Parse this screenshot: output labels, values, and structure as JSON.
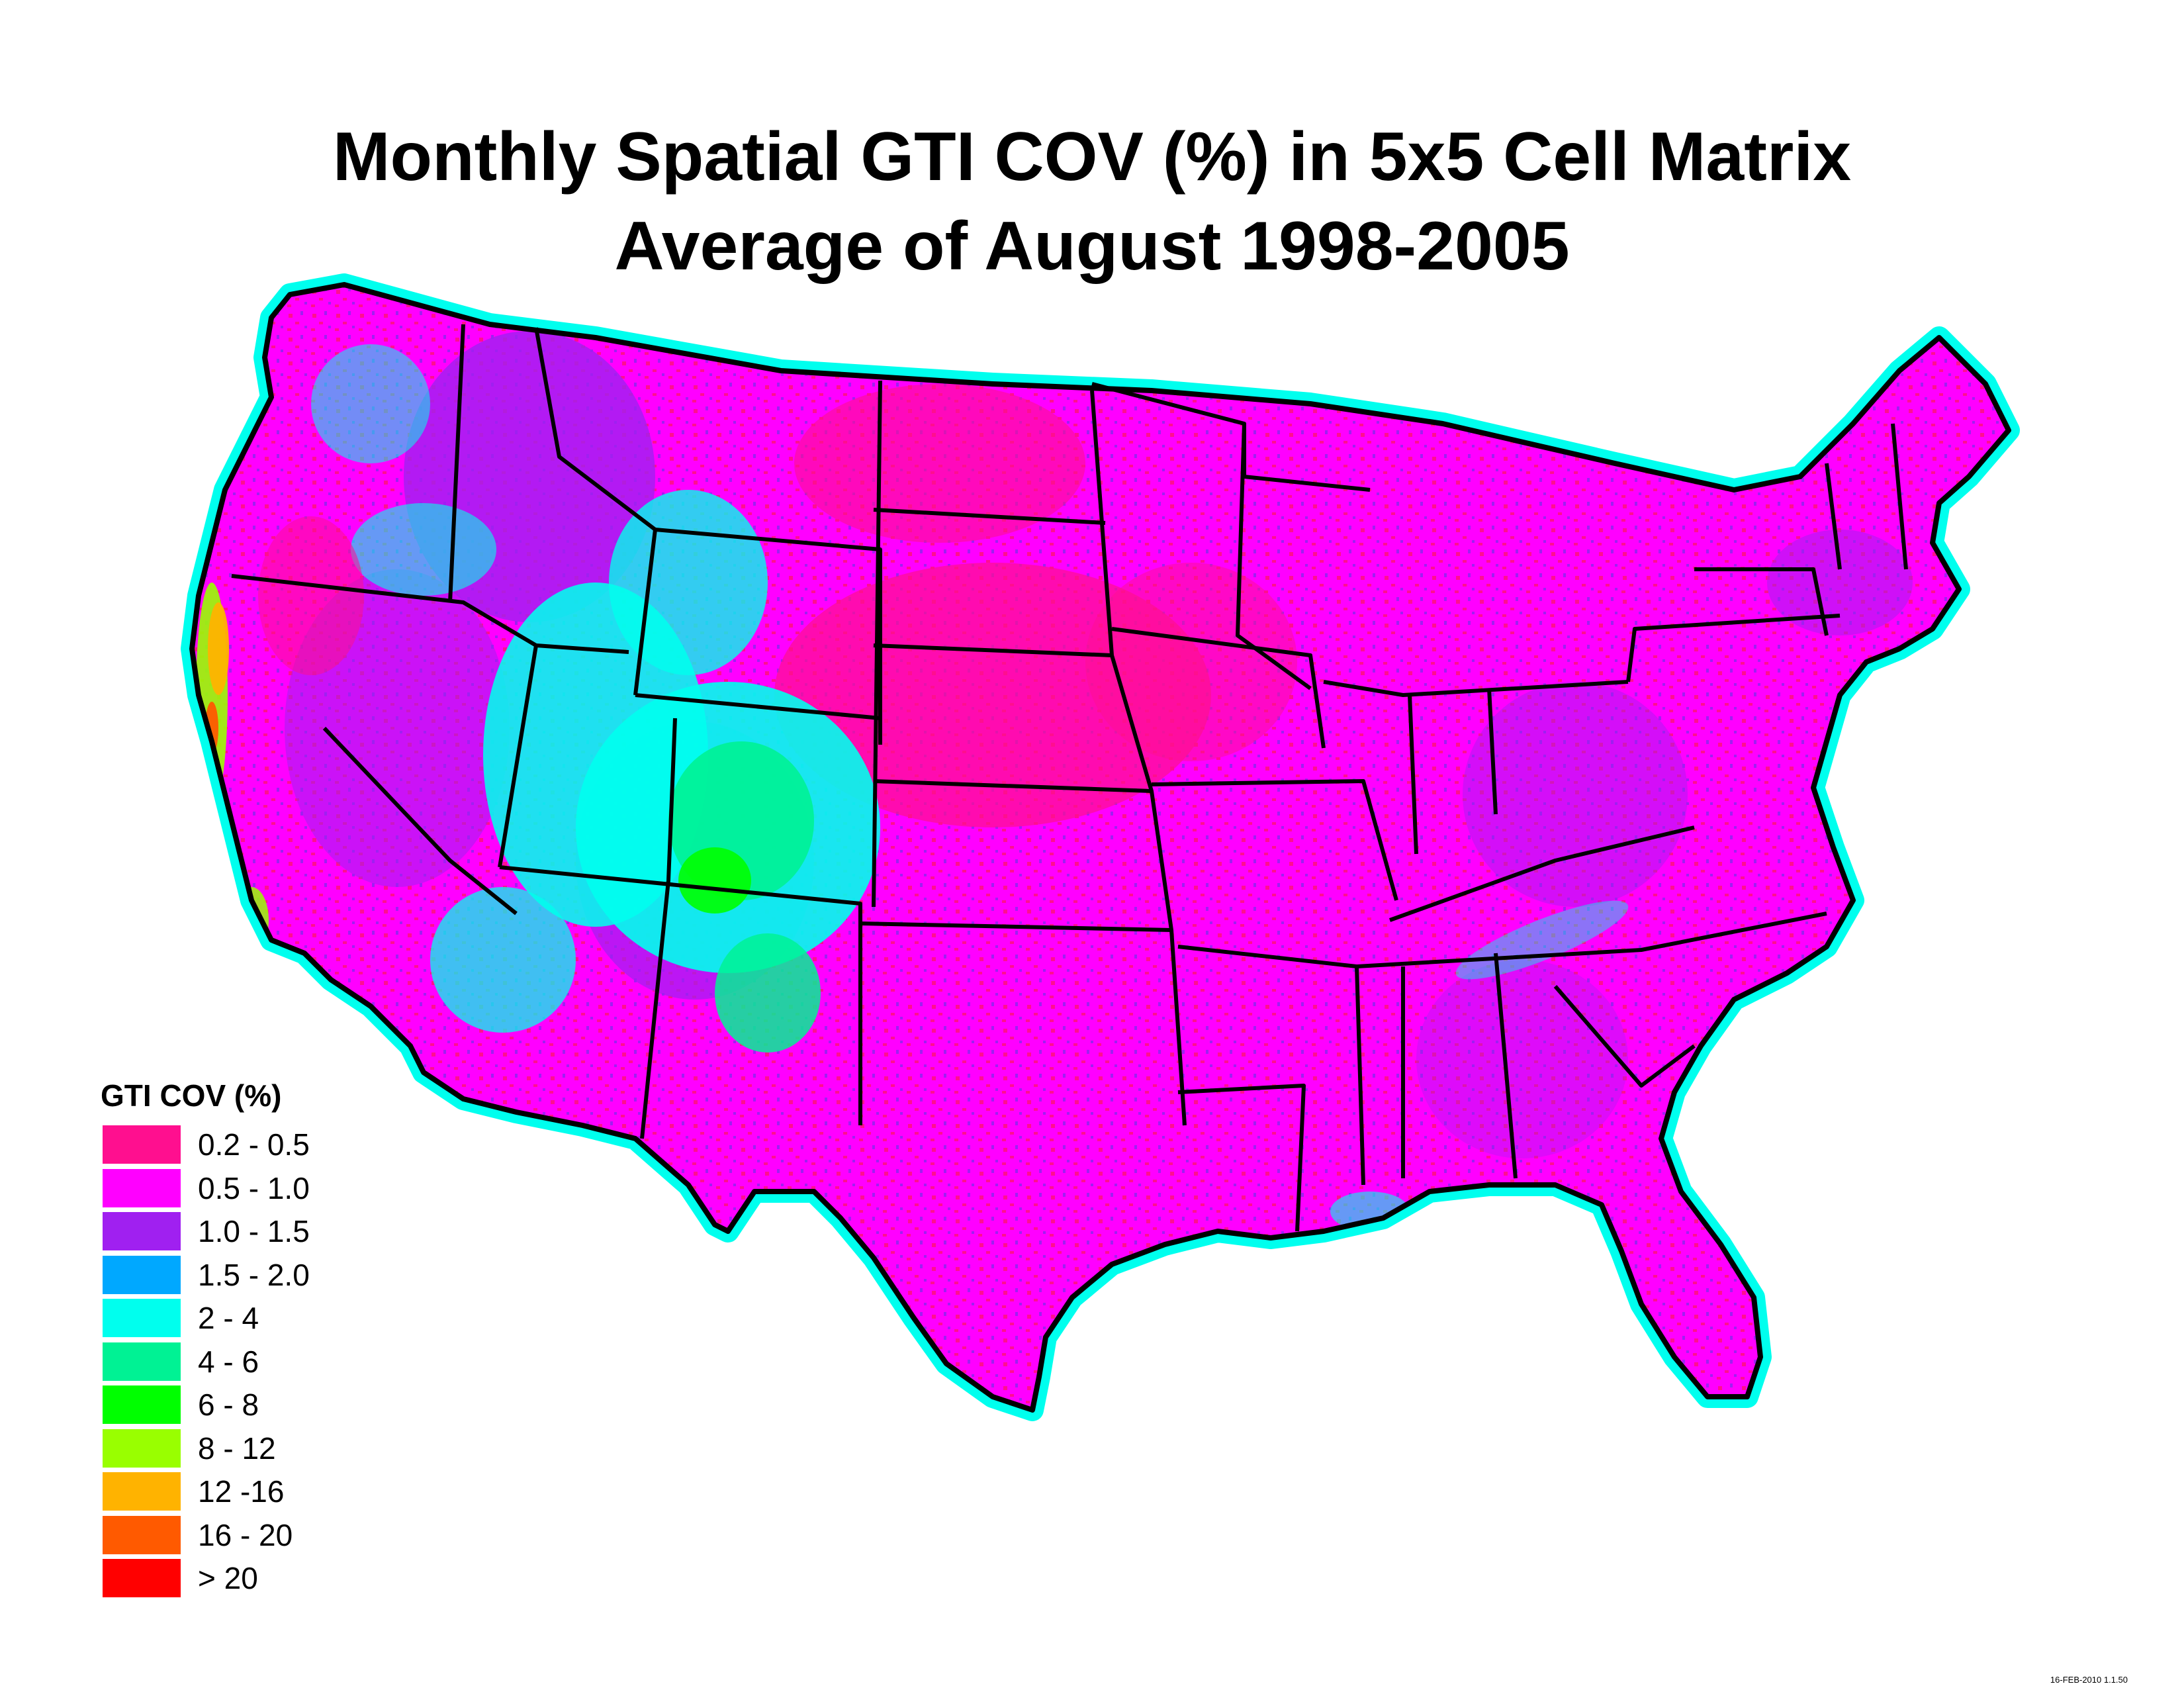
{
  "title": {
    "line1": "Monthly Spatial GTI COV (%) in 5x5 Cell Matrix",
    "line2": "Average of August 1998-2005"
  },
  "legend": {
    "title": "GTI COV (%)",
    "items": [
      {
        "label": "0.2 - 0.5",
        "color": "#ff0f8f"
      },
      {
        "label": "0.5 - 1.0",
        "color": "#ff00ff"
      },
      {
        "label": "1.0 - 1.5",
        "color": "#a020f0"
      },
      {
        "label": "1.5 - 2.0",
        "color": "#00a8ff"
      },
      {
        "label": "2 - 4",
        "color": "#00ffee"
      },
      {
        "label": "4 - 6",
        "color": "#00f294"
      },
      {
        "label": "6 - 8",
        "color": "#00ff00"
      },
      {
        "label": "8 - 12",
        "color": "#99ff00"
      },
      {
        "label": "12 -16",
        "color": "#ffb300"
      },
      {
        "label": "16 - 20",
        "color": "#ff5a00"
      },
      {
        "label": "> 20",
        "color": "#ff0000"
      }
    ]
  },
  "stamp": "16-FEB-2010 1.1.50",
  "map_style": {
    "land_dominant": "#ff00ff",
    "border_color": "#000000",
    "coast_fringe": "#00ffee"
  }
}
